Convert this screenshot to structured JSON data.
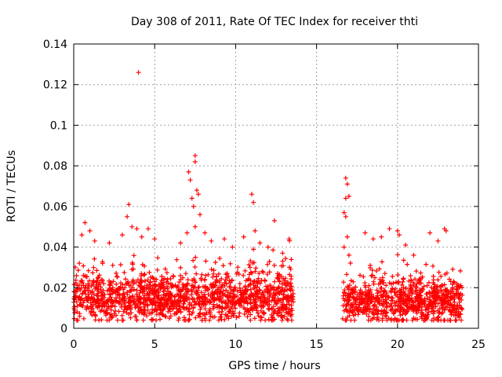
{
  "chart_data": {
    "type": "scatter",
    "title": "Day 308 of 2011, Rate Of TEC Index for receiver thti",
    "xlabel": "GPS time / hours",
    "ylabel": "ROTI / TECUs",
    "xlim": [
      0,
      25
    ],
    "ylim": [
      0,
      0.14
    ],
    "xticks": [
      0,
      5,
      10,
      15,
      20,
      25
    ],
    "xtick_labels": [
      "0",
      "5",
      "10",
      "15",
      "20",
      "25"
    ],
    "yticks": [
      0,
      0.02,
      0.04,
      0.06,
      0.08,
      0.1,
      0.12,
      0.14
    ],
    "ytick_labels": [
      "0",
      "0.02",
      "0.04",
      "0.06",
      "0.08",
      "0.1",
      "0.12",
      "0.14"
    ],
    "grid": true,
    "marker": "+",
    "series": [
      {
        "name": "ROTI",
        "color": "#ff0000",
        "density_profile": [
          {
            "range": [
              0.0,
              13.6
            ],
            "base": 0.014,
            "spread": 0.012,
            "count": 1400
          },
          {
            "range": [
              16.6,
              24.0
            ],
            "base": 0.013,
            "spread": 0.011,
            "count": 800
          }
        ],
        "points": [
          [
            4.0,
            0.126
          ],
          [
            3.4,
            0.061
          ],
          [
            7.5,
            0.085
          ],
          [
            7.5,
            0.082
          ],
          [
            7.1,
            0.077
          ],
          [
            7.2,
            0.073
          ],
          [
            7.6,
            0.068
          ],
          [
            7.7,
            0.066
          ],
          [
            7.3,
            0.064
          ],
          [
            7.4,
            0.06
          ],
          [
            7.8,
            0.056
          ],
          [
            7.5,
            0.05
          ],
          [
            11.0,
            0.066
          ],
          [
            11.1,
            0.062
          ],
          [
            12.4,
            0.053
          ],
          [
            11.2,
            0.048
          ],
          [
            16.8,
            0.074
          ],
          [
            16.9,
            0.071
          ],
          [
            17.0,
            0.065
          ],
          [
            16.8,
            0.064
          ],
          [
            16.7,
            0.057
          ],
          [
            16.8,
            0.055
          ],
          [
            16.9,
            0.045
          ],
          [
            16.7,
            0.04
          ],
          [
            17.0,
            0.036
          ],
          [
            0.7,
            0.052
          ],
          [
            0.5,
            0.046
          ],
          [
            1.0,
            0.048
          ],
          [
            1.3,
            0.043
          ],
          [
            2.2,
            0.042
          ],
          [
            3.0,
            0.046
          ],
          [
            3.3,
            0.055
          ],
          [
            3.6,
            0.05
          ],
          [
            3.9,
            0.049
          ],
          [
            4.2,
            0.045
          ],
          [
            4.6,
            0.049
          ],
          [
            5.0,
            0.044
          ],
          [
            6.6,
            0.042
          ],
          [
            7.0,
            0.047
          ],
          [
            8.1,
            0.047
          ],
          [
            8.5,
            0.043
          ],
          [
            9.3,
            0.044
          ],
          [
            9.8,
            0.04
          ],
          [
            10.5,
            0.045
          ],
          [
            11.5,
            0.042
          ],
          [
            12.0,
            0.04
          ],
          [
            12.9,
            0.037
          ],
          [
            13.3,
            0.044
          ],
          [
            18.0,
            0.047
          ],
          [
            18.5,
            0.044
          ],
          [
            19.0,
            0.045
          ],
          [
            19.5,
            0.049
          ],
          [
            20.0,
            0.048
          ],
          [
            20.1,
            0.046
          ],
          [
            20.5,
            0.041
          ],
          [
            21.0,
            0.036
          ],
          [
            22.0,
            0.047
          ],
          [
            22.5,
            0.043
          ],
          [
            22.9,
            0.049
          ],
          [
            23.0,
            0.048
          ],
          [
            23.8,
            0.02
          ],
          [
            23.9,
            0.017
          ]
        ]
      }
    ]
  }
}
